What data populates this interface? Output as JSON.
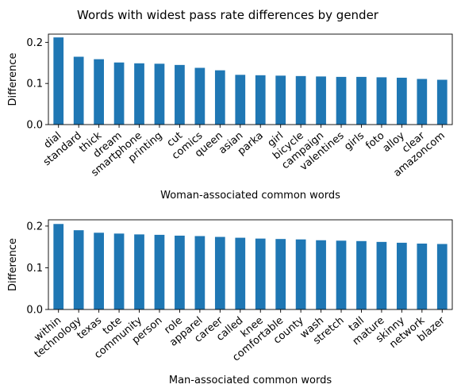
{
  "figure": {
    "suptitle": "Words with widest pass rate differences by gender"
  },
  "chart_data": [
    {
      "type": "bar",
      "title": "",
      "xlabel": "Woman-associated common words",
      "ylabel": "Difference",
      "ylim": [
        0,
        0.22
      ],
      "yticks": [
        0.0,
        0.1,
        0.2
      ],
      "ytick_labels": [
        "0.0",
        "0.1",
        "0.2"
      ],
      "grid": false,
      "bar_color": "#1f77b4",
      "categories": [
        "dial",
        "standard",
        "thick",
        "dream",
        "smartphone",
        "printing",
        "cut",
        "comics",
        "queen",
        "asian",
        "parka",
        "girl",
        "bicycle",
        "campaign",
        "valentines",
        "girls",
        "foto",
        "alloy",
        "clear",
        "amazoncom"
      ],
      "values": [
        0.212,
        0.165,
        0.159,
        0.151,
        0.149,
        0.148,
        0.145,
        0.138,
        0.132,
        0.121,
        0.12,
        0.119,
        0.118,
        0.117,
        0.116,
        0.116,
        0.115,
        0.114,
        0.111,
        0.109
      ]
    },
    {
      "type": "bar",
      "title": "",
      "xlabel": "Man-associated common words",
      "ylabel": "Difference",
      "ylim": [
        0,
        0.215
      ],
      "yticks": [
        0.0,
        0.1,
        0.2
      ],
      "ytick_labels": [
        "0.0",
        "0.1",
        "0.2"
      ],
      "grid": false,
      "bar_color": "#1f77b4",
      "categories": [
        "within",
        "technology",
        "texas",
        "tote",
        "community",
        "person",
        "role",
        "apparel",
        "career",
        "called",
        "knee",
        "comfortable",
        "county",
        "wash",
        "stretch",
        "tall",
        "mature",
        "skinny",
        "network",
        "blazer"
      ],
      "values": [
        0.205,
        0.19,
        0.184,
        0.182,
        0.18,
        0.179,
        0.177,
        0.176,
        0.174,
        0.172,
        0.17,
        0.169,
        0.168,
        0.166,
        0.165,
        0.164,
        0.162,
        0.16,
        0.158,
        0.157
      ]
    }
  ]
}
